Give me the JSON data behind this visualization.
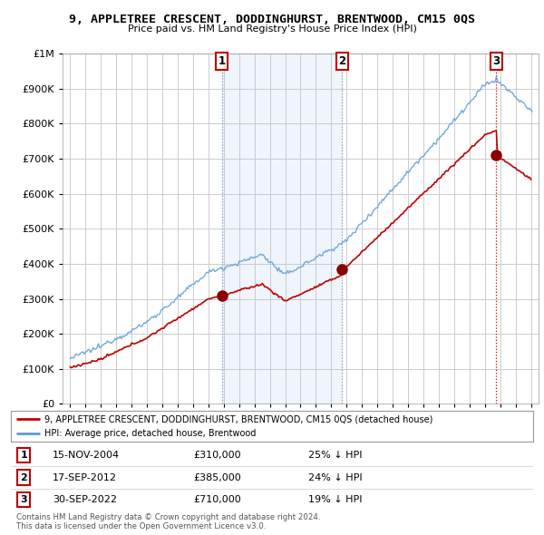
{
  "title": "9, APPLETREE CRESCENT, DODDINGHURST, BRENTWOOD, CM15 0QS",
  "subtitle": "Price paid vs. HM Land Registry's House Price Index (HPI)",
  "hpi_label": "HPI: Average price, detached house, Brentwood",
  "property_label": "9, APPLETREE CRESCENT, DODDINGHURST, BRENTWOOD, CM15 0QS (detached house)",
  "footer1": "Contains HM Land Registry data © Crown copyright and database right 2024.",
  "footer2": "This data is licensed under the Open Government Licence v3.0.",
  "transactions": [
    {
      "num": 1,
      "date": "15-NOV-2004",
      "price": 310000,
      "pct": "25% ↓ HPI",
      "x": 2004.875
    },
    {
      "num": 2,
      "date": "17-SEP-2012",
      "price": 385000,
      "pct": "24% ↓ HPI",
      "x": 2012.708
    },
    {
      "num": 3,
      "date": "30-SEP-2022",
      "price": 710000,
      "pct": "19% ↓ HPI",
      "x": 2022.75
    }
  ],
  "hpi_color": "#5b9bd5",
  "price_color": "#c00000",
  "marker_color": "#8b0000",
  "vline_color_12": "#aaaacc",
  "vline_color_3": "#cc0000",
  "bg_color": "#ffffff",
  "plot_bg_color": "#ffffff",
  "fill_color": "#ddeeff",
  "grid_color": "#cccccc",
  "ylim": [
    0,
    1000000
  ],
  "xlim_start": 1994.5,
  "xlim_end": 2025.5
}
